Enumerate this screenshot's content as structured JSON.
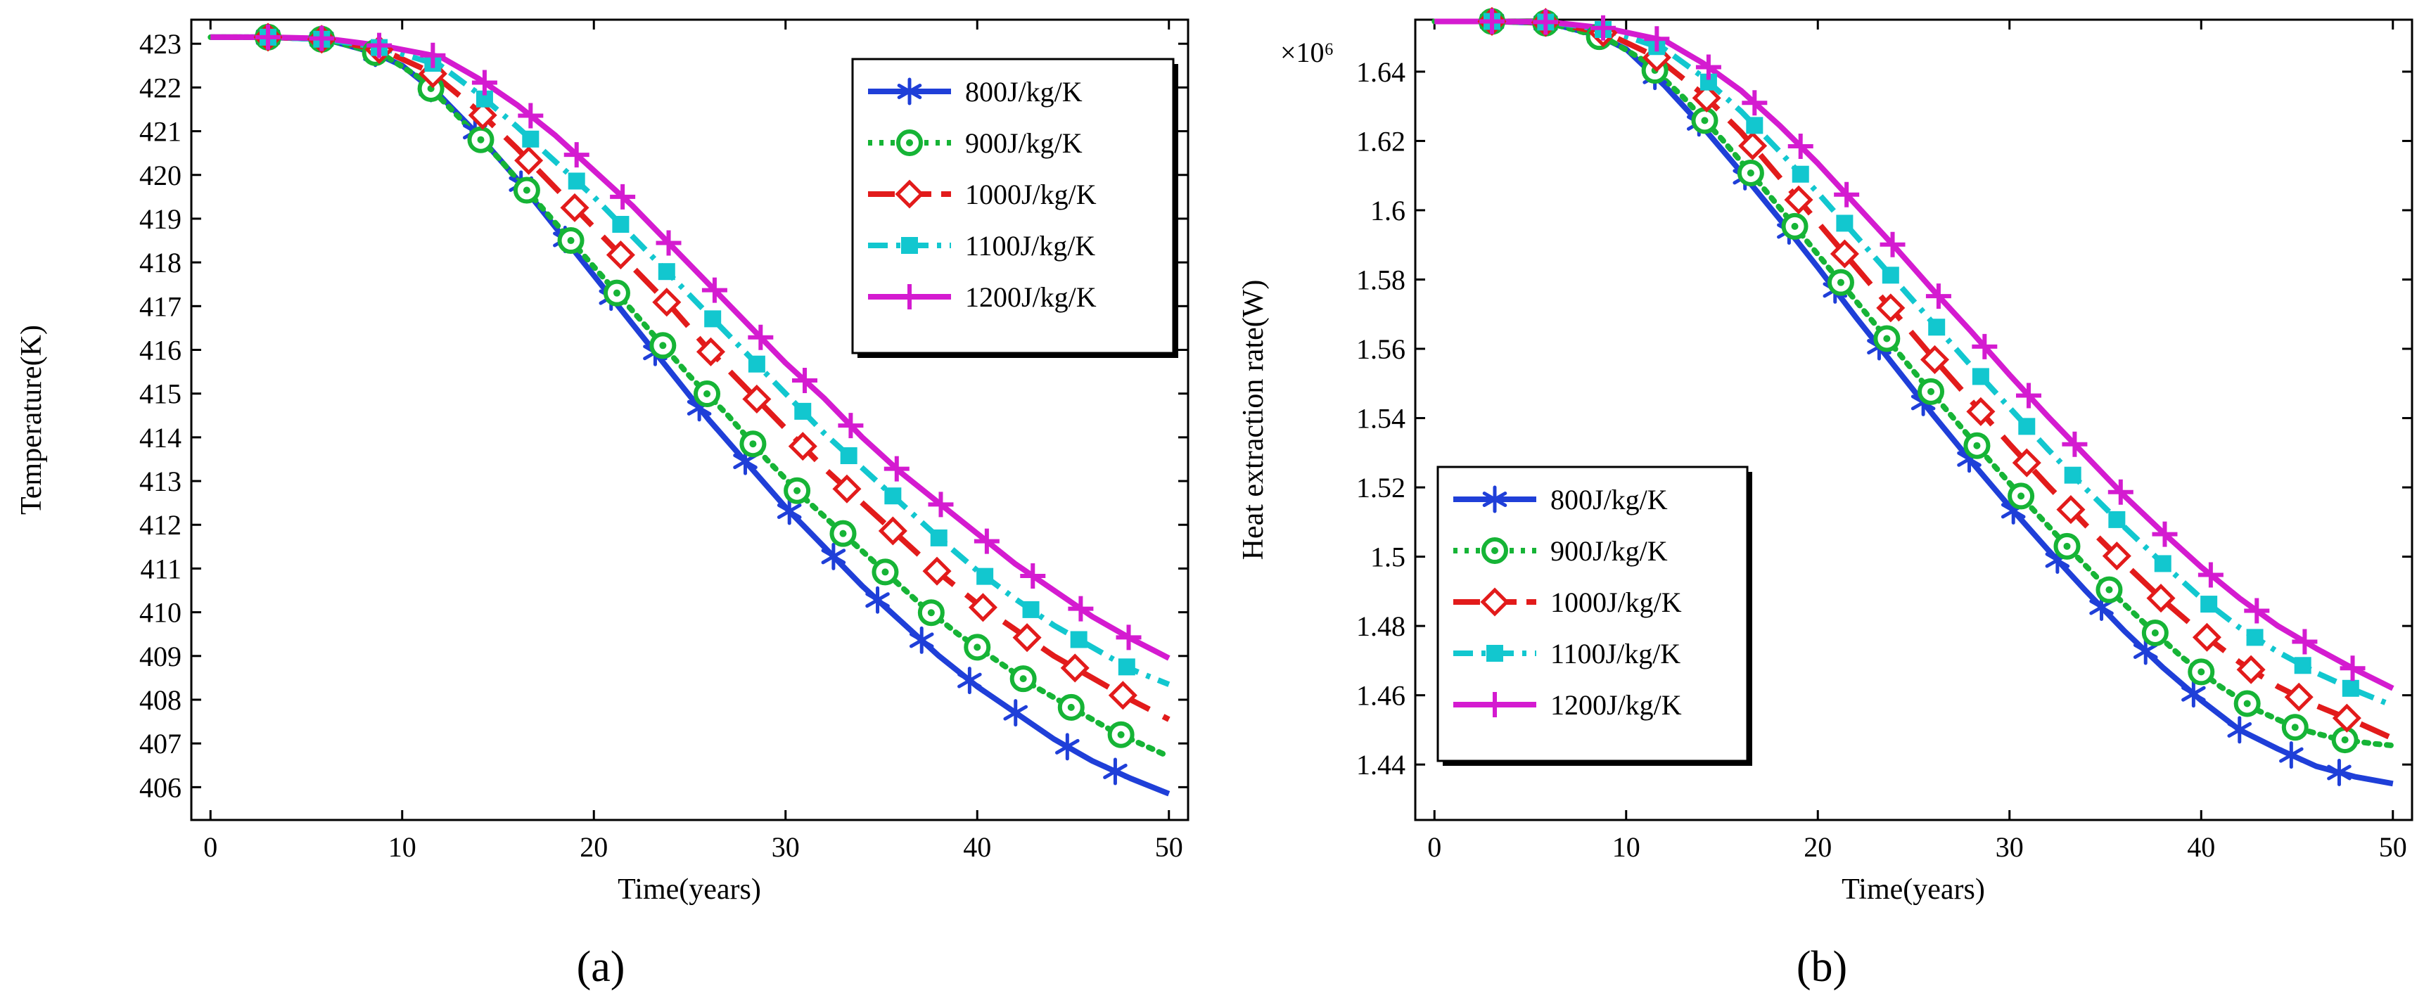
{
  "figure": {
    "panels": [
      "(a)",
      "(b)"
    ]
  },
  "colors": {
    "800": "#1f3fd8",
    "900": "#16b436",
    "1000": "#e21b1b",
    "1100": "#12c7cf",
    "1200": "#d41bd0"
  },
  "chart_data": [
    {
      "type": "line",
      "panel_label": "(a)",
      "title": "",
      "xlabel": "Time(years)",
      "ylabel": "Temperature(K)",
      "xlim": [
        -1,
        51
      ],
      "ylim": [
        405.25,
        423.55
      ],
      "xticks": [
        0,
        10,
        20,
        30,
        40,
        50
      ],
      "yticks": [
        406,
        407,
        408,
        409,
        410,
        411,
        412,
        413,
        414,
        415,
        416,
        417,
        418,
        419,
        420,
        421,
        422,
        423
      ],
      "legend_position": "top-right",
      "grid": false,
      "series": [
        {
          "name": "800J/kg/K",
          "color_key": "800",
          "marker": "asterisk",
          "dash": "",
          "x": [
            0,
            3,
            6,
            8.5,
            10,
            12,
            14,
            16,
            18,
            20,
            22,
            24,
            26,
            28,
            30,
            32,
            34,
            36,
            38,
            40,
            42,
            44,
            46,
            48,
            50
          ],
          "y": [
            423.15,
            423.15,
            423.1,
            422.8,
            422.5,
            421.8,
            420.9,
            419.9,
            418.8,
            417.7,
            416.6,
            415.5,
            414.4,
            413.4,
            412.4,
            411.5,
            410.6,
            409.8,
            409.0,
            408.3,
            407.7,
            407.1,
            406.6,
            406.2,
            405.85
          ],
          "marker_x": [
            3,
            5.8,
            8.6,
            11.5,
            13.8,
            16.2,
            18.5,
            20.9,
            23.2,
            25.5,
            27.9,
            30.2,
            32.5,
            34.8,
            37.1,
            39.6,
            42.0,
            44.7,
            47.2
          ]
        },
        {
          "name": "900J/kg/K",
          "color_key": "900",
          "marker": "circle",
          "dash": "6 10",
          "x": [
            0,
            3,
            6,
            9,
            11,
            13,
            15,
            17,
            19,
            21,
            23,
            25,
            27,
            29,
            31,
            33,
            35,
            37,
            39,
            41,
            43,
            45,
            47,
            49,
            50
          ],
          "y": [
            423.15,
            423.15,
            423.1,
            422.75,
            422.2,
            421.3,
            420.4,
            419.4,
            418.4,
            417.4,
            416.4,
            415.4,
            414.5,
            413.5,
            412.6,
            411.8,
            411.0,
            410.2,
            409.5,
            408.9,
            408.3,
            407.8,
            407.3,
            406.9,
            406.7
          ],
          "marker_x": [
            3,
            5.8,
            8.6,
            11.5,
            14.1,
            16.5,
            18.8,
            21.2,
            23.6,
            25.9,
            28.3,
            30.6,
            33.0,
            35.2,
            37.6,
            40.0,
            42.4,
            44.9,
            47.5
          ]
        },
        {
          "name": "1000J/kg/K",
          "color_key": "1000",
          "marker": "diamond",
          "dash": "44 22",
          "x": [
            0,
            3,
            6,
            9,
            11.5,
            14,
            16,
            18,
            20,
            22,
            24,
            26,
            28,
            30,
            32,
            34,
            36,
            38,
            40,
            42,
            44,
            46,
            48,
            50
          ],
          "y": [
            423.15,
            423.15,
            423.1,
            422.85,
            422.35,
            421.45,
            420.6,
            419.7,
            418.8,
            417.9,
            417.0,
            416.0,
            415.1,
            414.2,
            413.3,
            412.5,
            411.7,
            410.9,
            410.2,
            409.6,
            409.0,
            408.5,
            408.0,
            407.55
          ],
          "marker_x": [
            3,
            5.8,
            8.8,
            11.6,
            14.2,
            16.6,
            19.0,
            21.4,
            23.8,
            26.1,
            28.5,
            30.9,
            33.2,
            35.6,
            37.9,
            40.3,
            42.6,
            45.1,
            47.6
          ]
        },
        {
          "name": "1100J/kg/K",
          "color_key": "1100",
          "marker": "square",
          "dash": "28 12 6 12",
          "x": [
            0,
            3,
            6,
            9,
            12,
            14,
            16,
            18,
            20,
            22,
            24,
            26,
            28,
            30,
            32,
            34,
            36,
            38,
            40,
            42,
            44,
            46,
            48,
            50
          ],
          "y": [
            423.15,
            423.15,
            423.1,
            422.9,
            422.5,
            421.85,
            421.1,
            420.3,
            419.5,
            418.6,
            417.7,
            416.8,
            415.9,
            415.0,
            414.1,
            413.3,
            412.5,
            411.7,
            410.95,
            410.3,
            409.7,
            409.2,
            408.7,
            408.35
          ],
          "marker_x": [
            3,
            5.8,
            8.8,
            11.6,
            14.3,
            16.7,
            19.1,
            21.4,
            23.8,
            26.2,
            28.5,
            30.9,
            33.3,
            35.6,
            38.0,
            40.4,
            42.8,
            45.3,
            47.8
          ]
        },
        {
          "name": "1200J/kg/K",
          "color_key": "1200",
          "marker": "plus",
          "dash": "",
          "x": [
            0,
            3,
            6,
            9,
            12,
            14,
            16,
            18,
            20,
            22,
            24,
            26,
            28,
            30,
            32,
            34,
            36,
            38,
            40,
            42,
            44,
            46,
            48,
            50
          ],
          "y": [
            423.15,
            423.15,
            423.12,
            422.95,
            422.7,
            422.2,
            421.6,
            420.9,
            420.1,
            419.3,
            418.4,
            417.5,
            416.6,
            415.7,
            414.9,
            414.0,
            413.2,
            412.5,
            411.8,
            411.1,
            410.5,
            409.9,
            409.4,
            408.95
          ],
          "marker_x": [
            3,
            5.8,
            8.8,
            11.6,
            14.3,
            16.7,
            19.1,
            21.5,
            23.9,
            26.3,
            28.7,
            31.0,
            33.4,
            35.8,
            38.1,
            40.5,
            42.9,
            45.4,
            47.9
          ]
        }
      ]
    },
    {
      "type": "line",
      "panel_label": "(b)",
      "title": "",
      "xlabel": "Time(years)",
      "ylabel": "Heat extraction rate(W)",
      "y_multiplier": "×10⁶",
      "xlim": [
        -1,
        51
      ],
      "ylim": [
        1.424,
        1.655
      ],
      "xticks": [
        0,
        10,
        20,
        30,
        40,
        50
      ],
      "yticks": [
        1.44,
        1.46,
        1.48,
        1.5,
        1.52,
        1.54,
        1.56,
        1.58,
        1.6,
        1.62,
        1.64
      ],
      "ytick_labels": [
        "1.44",
        "1.46",
        "1.48",
        "1.5",
        "1.52",
        "1.54",
        "1.56",
        "1.58",
        "1.6",
        "1.62",
        "1.64"
      ],
      "legend_position": "bottom-left",
      "grid": false,
      "series": [
        {
          "name": "800J/kg/K",
          "color_key": "800",
          "marker": "asterisk",
          "dash": "",
          "x": [
            0,
            3,
            6,
            8.5,
            10,
            12,
            14,
            16,
            18,
            20,
            22,
            24,
            26,
            28,
            30,
            32,
            34,
            36,
            38,
            40,
            42,
            44,
            46,
            48,
            50
          ],
          "y": [
            1.6545,
            1.6545,
            1.654,
            1.6505,
            1.6465,
            1.636,
            1.624,
            1.611,
            1.5975,
            1.5835,
            1.569,
            1.555,
            1.541,
            1.5275,
            1.5145,
            1.502,
            1.49,
            1.4785,
            1.468,
            1.4585,
            1.45,
            1.4445,
            1.4395,
            1.4365,
            1.4345
          ],
          "marker_x": [
            3,
            5.8,
            8.6,
            11.5,
            13.8,
            16.2,
            18.5,
            20.9,
            23.2,
            25.5,
            27.9,
            30.2,
            32.5,
            34.8,
            37.1,
            39.6,
            42.0,
            44.7,
            47.2
          ]
        },
        {
          "name": "900J/kg/K",
          "color_key": "900",
          "marker": "circle",
          "dash": "6 10",
          "x": [
            0,
            3,
            6,
            9,
            11,
            13,
            15,
            17,
            19,
            21,
            23,
            25,
            27,
            29,
            31,
            33,
            35,
            37,
            39,
            41,
            43,
            45,
            47,
            49,
            50
          ],
          "y": [
            1.6545,
            1.6545,
            1.654,
            1.6495,
            1.643,
            1.6325,
            1.6205,
            1.6075,
            1.594,
            1.5805,
            1.567,
            1.5535,
            1.5405,
            1.5275,
            1.515,
            1.503,
            1.4915,
            1.481,
            1.471,
            1.4625,
            1.4555,
            1.4505,
            1.4475,
            1.446,
            1.4455
          ],
          "marker_x": [
            3,
            5.8,
            8.6,
            11.5,
            14.1,
            16.5,
            18.8,
            21.2,
            23.6,
            25.9,
            28.3,
            30.6,
            33.0,
            35.2,
            37.6,
            40.0,
            42.4,
            44.9,
            47.5
          ]
        },
        {
          "name": "1000J/kg/K",
          "color_key": "1000",
          "marker": "diamond",
          "dash": "44 22",
          "x": [
            0,
            3,
            6,
            9,
            11.5,
            14,
            16,
            18,
            20,
            22,
            24,
            26,
            28,
            30,
            32,
            34,
            36,
            38,
            40,
            42,
            44,
            46,
            48,
            50
          ],
          "y": [
            1.6545,
            1.6545,
            1.6542,
            1.651,
            1.6445,
            1.6335,
            1.6225,
            1.6095,
            1.5965,
            1.5835,
            1.5705,
            1.5575,
            1.545,
            1.5325,
            1.5205,
            1.509,
            1.498,
            1.4875,
            1.478,
            1.4695,
            1.4625,
            1.457,
            1.4525,
            1.4475
          ],
          "marker_x": [
            3,
            5.8,
            8.8,
            11.6,
            14.2,
            16.6,
            19.0,
            21.4,
            23.8,
            26.1,
            28.5,
            30.9,
            33.2,
            35.6,
            37.9,
            40.3,
            42.6,
            45.1,
            47.6
          ]
        },
        {
          "name": "1100J/kg/K",
          "color_key": "1100",
          "marker": "square",
          "dash": "28 12 6 12",
          "x": [
            0,
            3,
            6,
            9,
            12,
            14,
            16,
            18,
            20,
            22,
            24,
            26,
            28,
            30,
            32,
            34,
            36,
            38,
            40,
            42,
            44,
            46,
            48,
            50
          ],
          "y": [
            1.6545,
            1.6545,
            1.6543,
            1.652,
            1.6465,
            1.6385,
            1.6285,
            1.617,
            1.605,
            1.5925,
            1.58,
            1.5675,
            1.555,
            1.543,
            1.531,
            1.5195,
            1.5085,
            1.498,
            1.488,
            1.4795,
            1.4725,
            1.4665,
            1.4615,
            1.457
          ],
          "marker_x": [
            3,
            5.8,
            8.8,
            11.6,
            14.3,
            16.7,
            19.1,
            21.4,
            23.8,
            26.2,
            28.5,
            30.9,
            33.3,
            35.6,
            38.0,
            40.4,
            42.8,
            45.3,
            47.8
          ]
        },
        {
          "name": "1200J/kg/K",
          "color_key": "1200",
          "marker": "plus",
          "dash": "",
          "x": [
            0,
            3,
            6,
            9,
            12,
            14,
            16,
            18,
            20,
            22,
            24,
            26,
            28,
            30,
            32,
            34,
            36,
            38,
            40,
            42,
            44,
            46,
            48,
            50
          ],
          "y": [
            1.6545,
            1.6545,
            1.6543,
            1.6525,
            1.649,
            1.6425,
            1.6345,
            1.6245,
            1.6135,
            1.6015,
            1.5895,
            1.577,
            1.565,
            1.5525,
            1.5405,
            1.529,
            1.5175,
            1.507,
            1.497,
            1.488,
            1.48,
            1.4735,
            1.4675,
            1.462
          ],
          "marker_x": [
            3,
            5.8,
            8.8,
            11.6,
            14.3,
            16.7,
            19.1,
            21.5,
            23.9,
            26.3,
            28.7,
            31.0,
            33.4,
            35.8,
            38.1,
            40.5,
            42.9,
            45.4,
            47.9
          ]
        }
      ]
    }
  ]
}
